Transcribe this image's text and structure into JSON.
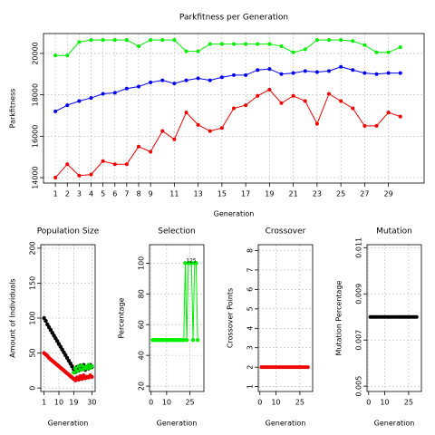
{
  "chart_data": [
    {
      "type": "line",
      "title": "Parkfitness per Generation",
      "xlabel": "Generation",
      "ylabel": "Parkfitness",
      "x": [
        1,
        2,
        3,
        4,
        5,
        6,
        7,
        8,
        9,
        10,
        11,
        12,
        13,
        14,
        15,
        16,
        17,
        18,
        19,
        20,
        21,
        22,
        23,
        24,
        25,
        26,
        27,
        28,
        29,
        30
      ],
      "series": [
        {
          "color": "#00ee00",
          "values": [
            19900,
            19900,
            20550,
            20650,
            20650,
            20650,
            20650,
            20350,
            20650,
            20650,
            20650,
            20100,
            20100,
            20450,
            20450,
            20450,
            20450,
            20450,
            20450,
            20350,
            20050,
            20200,
            20650,
            20650,
            20650,
            20600,
            20400,
            20050,
            20050,
            20300
          ]
        },
        {
          "color": "#0000ee",
          "values": [
            17200,
            17500,
            17700,
            17850,
            18050,
            18100,
            18300,
            18400,
            18600,
            18700,
            18550,
            18700,
            18800,
            18700,
            18850,
            18950,
            18950,
            19200,
            19250,
            19000,
            19050,
            19150,
            19100,
            19150,
            19350,
            19200,
            19050,
            19000,
            19050,
            19050
          ]
        },
        {
          "color": "#ee0000",
          "values": [
            14000,
            14650,
            14100,
            14150,
            14800,
            14650,
            14650,
            15500,
            15250,
            16250,
            15850,
            17150,
            16550,
            16250,
            16400,
            17350,
            17500,
            17950,
            18250,
            17600,
            17950,
            17700,
            16600,
            18050,
            17700,
            17350,
            16500,
            16500,
            17150,
            16950
          ]
        }
      ],
      "xlim": [
        0,
        32
      ],
      "ylim": [
        13740,
        20960
      ],
      "xticks": [
        1,
        2,
        3,
        4,
        5,
        6,
        7,
        8,
        9,
        11,
        13,
        15,
        17,
        19,
        21,
        23,
        25,
        27,
        29
      ],
      "yticks": [
        14000,
        16000,
        18000,
        20000
      ],
      "grid": true,
      "lines": true
    },
    {
      "type": "line",
      "title": "Population Size",
      "xlabel": "Generation",
      "ylabel": "Amount of Individuals",
      "x": [
        1,
        2,
        3,
        4,
        5,
        6,
        7,
        8,
        9,
        10,
        11,
        12,
        13,
        14,
        15,
        16,
        17,
        18,
        19,
        20,
        21,
        22,
        23,
        24,
        25,
        26,
        27,
        28,
        29,
        30
      ],
      "series": [
        {
          "color": "#000000",
          "values": [
            100,
            96,
            91,
            87,
            83,
            79,
            75,
            71,
            67,
            63,
            59,
            55,
            51,
            47,
            43,
            39,
            35,
            31,
            27,
            23,
            30,
            25,
            32,
            27,
            33,
            26,
            30,
            28,
            33,
            30
          ]
        },
        {
          "color": "#ee0000",
          "values": [
            50,
            48,
            46,
            43,
            41,
            39,
            37,
            35,
            33,
            31,
            29,
            27,
            25,
            23,
            21,
            19,
            17,
            15,
            13,
            11,
            15,
            12,
            17,
            13,
            18,
            14,
            16,
            15,
            18,
            16
          ]
        },
        {
          "color": "#00dd00",
          "values": [
            null,
            null,
            null,
            null,
            null,
            null,
            null,
            null,
            null,
            null,
            null,
            null,
            null,
            null,
            null,
            null,
            null,
            null,
            22,
            28,
            24,
            31,
            26,
            32,
            27,
            30,
            28,
            33,
            29,
            31
          ]
        }
      ],
      "xlim": [
        -1,
        32
      ],
      "ylim": [
        -5,
        205
      ],
      "xticks": [
        1,
        10,
        19,
        30
      ],
      "yticks": [
        0,
        50,
        100,
        150,
        200
      ],
      "grid": true,
      "lines": false
    },
    {
      "type": "line",
      "title": "Selection",
      "xlabel": "Generation",
      "ylabel": "Percentage",
      "annotation": "125",
      "x": [
        1,
        2,
        3,
        4,
        5,
        6,
        7,
        8,
        9,
        10,
        11,
        12,
        13,
        14,
        15,
        16,
        17,
        18,
        19,
        20,
        21,
        22,
        23,
        24,
        25,
        26,
        27,
        28,
        29,
        30
      ],
      "series": [
        {
          "color": "#00ee00",
          "values": [
            50,
            50,
            50,
            50,
            50,
            50,
            50,
            50,
            50,
            50,
            50,
            50,
            50,
            50,
            50,
            50,
            50,
            50,
            50,
            50,
            50,
            100,
            50,
            100,
            100,
            100,
            50,
            100,
            100,
            50
          ]
        }
      ],
      "xlim": [
        -1,
        34
      ],
      "ylim": [
        16.5,
        112
      ],
      "xticks": [
        0,
        10,
        25
      ],
      "yticks": [
        20,
        40,
        60,
        80,
        100
      ],
      "grid": true,
      "lines": true
    },
    {
      "type": "line",
      "title": "Crossover",
      "xlabel": "Generation",
      "ylabel": "Crossover Points",
      "x": [
        1,
        2,
        3,
        4,
        5,
        6,
        7,
        8,
        9,
        10,
        11,
        12,
        13,
        14,
        15,
        16,
        17,
        18,
        19,
        20,
        21,
        22,
        23,
        24,
        25,
        26,
        27,
        28,
        29,
        30
      ],
      "series": [
        {
          "color": "#ee0000",
          "values": [
            2,
            2,
            2,
            2,
            2,
            2,
            2,
            2,
            2,
            2,
            2,
            2,
            2,
            2,
            2,
            2,
            2,
            2,
            2,
            2,
            2,
            2,
            2,
            2,
            2,
            2,
            2,
            2,
            2,
            2
          ]
        }
      ],
      "xlim": [
        -1,
        33
      ],
      "ylim": [
        0.75,
        8.3
      ],
      "xticks": [
        0,
        10,
        25
      ],
      "yticks": [
        1,
        2,
        3,
        4,
        5,
        6,
        7,
        8
      ],
      "grid": true,
      "lines": true
    },
    {
      "type": "line",
      "title": "Mutation",
      "xlabel": "Generation",
      "ylabel": "Mutation Percentage",
      "x": [
        1,
        2,
        3,
        4,
        5,
        6,
        7,
        8,
        9,
        10,
        11,
        12,
        13,
        14,
        15,
        16,
        17,
        18,
        19,
        20,
        21,
        22,
        23,
        24,
        25,
        26,
        27,
        28,
        29,
        30
      ],
      "series": [
        {
          "color": "#000000",
          "values": [
            0.008,
            0.008,
            0.008,
            0.008,
            0.008,
            0.008,
            0.008,
            0.008,
            0.008,
            0.008,
            0.008,
            0.008,
            0.008,
            0.008,
            0.008,
            0.008,
            0.008,
            0.008,
            0.008,
            0.008,
            0.008,
            0.008,
            0.008,
            0.008,
            0.008,
            0.008,
            0.008,
            0.008,
            0.008,
            0.008
          ]
        }
      ],
      "xlim": [
        -1,
        33
      ],
      "ylim": [
        0.00477,
        0.01113
      ],
      "xticks": [
        0,
        10,
        25
      ],
      "yticks": [
        0.005,
        0.007,
        0.009,
        0.011
      ],
      "grid": true,
      "lines": true
    }
  ]
}
